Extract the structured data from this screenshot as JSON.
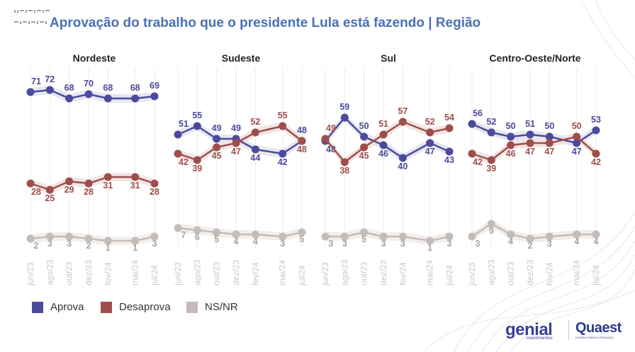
{
  "title": "Aprovação do trabalho que o presidente Lula está fazendo | Região",
  "legend": {
    "items": [
      {
        "label": "Aprova",
        "color": "#4b4a9c"
      },
      {
        "label": "Desaprova",
        "color": "#9e4e4b"
      },
      {
        "label": "NS/NR",
        "color": "#c4bcb9"
      }
    ]
  },
  "brand": {
    "left_name": "genial",
    "left_sub": "investimentos",
    "right_name": "Quaest",
    "right_sub": "CONSULTORIA E PESQUISA"
  },
  "colors": {
    "aprova": "#4b4a9c",
    "desaprova": "#9e4e4b",
    "nsnr": "#c4bcb9",
    "title": "#4a70b5"
  },
  "chart_data": [
    {
      "type": "line",
      "title": "Nordeste",
      "x": [
        "jun/23",
        "ago/23",
        "out/23",
        "dez/23",
        "fev/24",
        "mai/24",
        "jul/24"
      ],
      "series": [
        {
          "name": "Aprova",
          "values": [
            71,
            72,
            68,
            70,
            68,
            68,
            69
          ],
          "labels": [
            "71",
            "72",
            "68",
            "70",
            "68",
            "68",
            "69"
          ]
        },
        {
          "name": "Desaprova",
          "values": [
            28,
            25,
            29,
            28,
            31,
            31,
            28
          ],
          "labels": [
            "28",
            "25",
            "29",
            "28",
            "31",
            "31",
            "28"
          ]
        },
        {
          "name": "NS/NR",
          "values": [
            2,
            3,
            3,
            2,
            1,
            1,
            3
          ],
          "labels": [
            "2",
            "3",
            "3",
            "2",
            "1",
            "1",
            "3"
          ]
        }
      ]
    },
    {
      "type": "line",
      "title": "Sudeste",
      "x": [
        "jun/23",
        "ago/23",
        "out/23",
        "dez/23",
        "fev/24",
        "mai/24",
        "jul/24"
      ],
      "series": [
        {
          "name": "Aprova",
          "values": [
            51,
            55,
            49,
            49,
            44,
            42,
            48
          ],
          "labels": [
            "51",
            "55",
            "49",
            "49",
            "44",
            "42",
            "48"
          ]
        },
        {
          "name": "Desaprova",
          "values": [
            42,
            39,
            45,
            47,
            52,
            55,
            48
          ],
          "labels": [
            "42",
            "39",
            "45",
            "47",
            "52",
            "55",
            "48"
          ]
        },
        {
          "name": "NS/NR",
          "values": [
            7,
            6,
            5,
            4,
            4,
            3,
            5
          ],
          "labels": [
            "7",
            "6",
            "5",
            "4",
            "4",
            "3",
            "5"
          ]
        }
      ]
    },
    {
      "type": "line",
      "title": "Sul",
      "x": [
        "jun/23",
        "ago/23",
        "out/23",
        "dez/23",
        "fev/24",
        "mai/24",
        "jul/24"
      ],
      "series": [
        {
          "name": "Aprova",
          "values": [
            48,
            59,
            50,
            46,
            40,
            47,
            43
          ],
          "labels": [
            "48",
            "59",
            "50",
            "46",
            "40",
            "47",
            "43"
          ]
        },
        {
          "name": "Desaprova",
          "values": [
            49,
            38,
            45,
            51,
            57,
            52,
            54
          ],
          "labels": [
            "49",
            "38",
            "45",
            "51",
            "57",
            "52",
            "54"
          ]
        },
        {
          "name": "NS/NR",
          "values": [
            3,
            3,
            5,
            3,
            3,
            1,
            3
          ],
          "labels": [
            "3",
            "3",
            "5",
            "3",
            "3",
            "1",
            "3"
          ]
        }
      ]
    },
    {
      "type": "line",
      "title": "Centro-Oeste/Norte",
      "x": [
        "jun/23",
        "ago/23",
        "out/23",
        "dez/23",
        "fev/24",
        "mai/24",
        "jul/24"
      ],
      "series": [
        {
          "name": "Aprova",
          "values": [
            56,
            52,
            50,
            51,
            50,
            47,
            53
          ],
          "labels": [
            "56",
            "52",
            "50",
            "51",
            "50",
            "47",
            "53"
          ]
        },
        {
          "name": "Desaprova",
          "values": [
            42,
            39,
            46,
            47,
            47,
            50,
            42
          ],
          "labels": [
            "42",
            "39",
            "46",
            "47",
            "47",
            "50",
            "42"
          ]
        },
        {
          "name": "NS/NR",
          "values": [
            3,
            9,
            4,
            2,
            3,
            4,
            4
          ],
          "labels": [
            "3",
            "9",
            "4",
            "2",
            "3",
            "4",
            "4"
          ]
        }
      ]
    }
  ]
}
